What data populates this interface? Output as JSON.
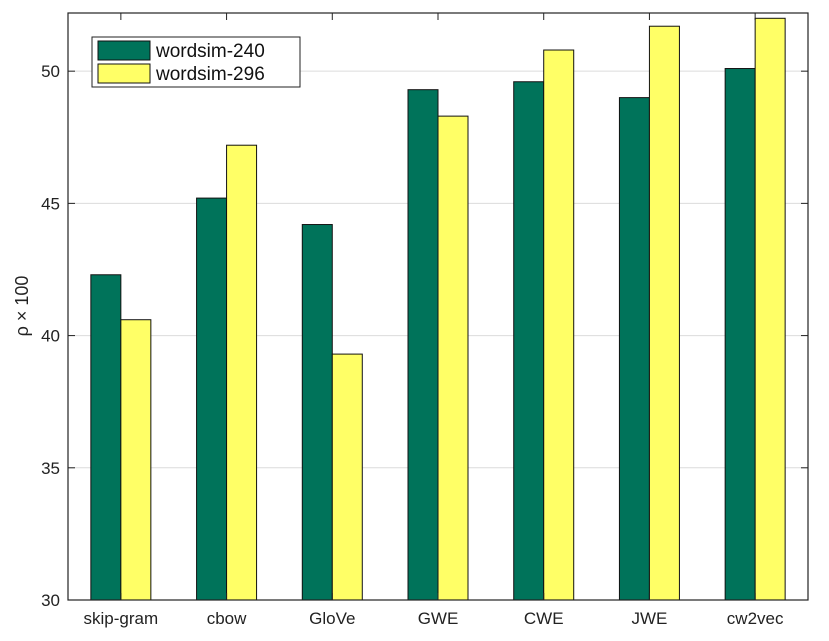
{
  "chart_data": {
    "type": "bar",
    "title": "",
    "xlabel": "",
    "ylabel": "ρ × 100",
    "categories": [
      "skip-gram",
      "cbow",
      "GloVe",
      "GWE",
      "CWE",
      "JWE",
      "cw2vec"
    ],
    "series": [
      {
        "name": "wordsim-240",
        "color": "#00735a",
        "values": [
          42.3,
          45.2,
          44.2,
          49.3,
          49.6,
          49.0,
          50.1
        ]
      },
      {
        "name": "wordsim-296",
        "color": "#ffff66",
        "values": [
          40.6,
          47.2,
          39.3,
          48.3,
          50.8,
          51.7,
          52.0
        ]
      }
    ],
    "ylim": [
      30,
      52.2
    ],
    "yticks": [
      30,
      35,
      40,
      45,
      50
    ],
    "grid": "y",
    "legend_position": "top-left"
  }
}
